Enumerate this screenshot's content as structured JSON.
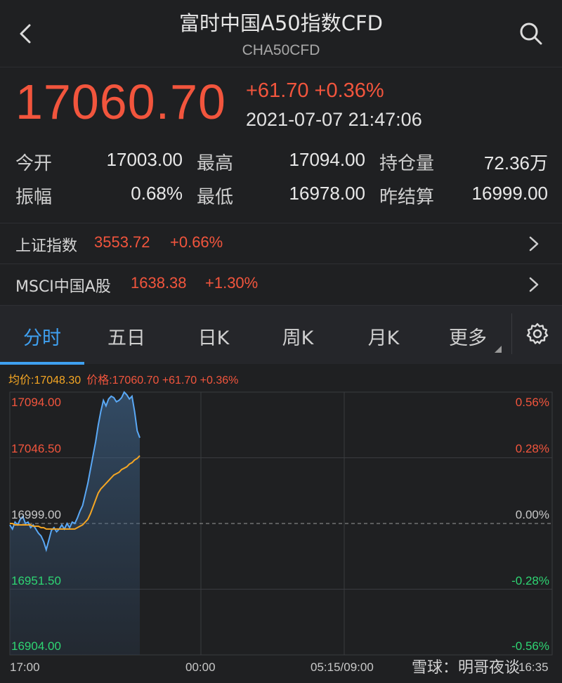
{
  "header": {
    "title": "富时中国A50指数CFD",
    "subtitle": "CHA50CFD",
    "back_icon": "chevron-left-icon",
    "search_icon": "search-icon"
  },
  "quote": {
    "price": "17060.70",
    "change": "+61.70",
    "change_pct": "+0.36%",
    "datetime": "2021-07-07 21:47:06",
    "up_color": "#f2553d"
  },
  "stats": [
    [
      {
        "label": "今开",
        "value": "17003.00"
      },
      {
        "label": "最高",
        "value": "17094.00"
      },
      {
        "label": "持仓量",
        "value": "72.36万"
      }
    ],
    [
      {
        "label": "振幅",
        "value": "0.68%"
      },
      {
        "label": "最低",
        "value": "16978.00"
      },
      {
        "label": "昨结算",
        "value": "16999.00"
      }
    ]
  ],
  "indices": [
    {
      "name": "上证指数",
      "value": "3553.72",
      "change": "+0.66%"
    },
    {
      "name": "MSCI中国A股",
      "value": "1638.38",
      "change": "+1.30%"
    }
  ],
  "tabs": [
    "分时",
    "五日",
    "日K",
    "周K",
    "月K",
    "更多"
  ],
  "active_tab": "分时",
  "legend": {
    "avg": "均价:17048.30",
    "price": "价格:17060.70 +61.70 +0.36%"
  },
  "chart_data": {
    "type": "line",
    "ylim": [
      16904.0,
      17094.0
    ],
    "y_ticks_left": [
      "17094.00",
      "17046.50",
      "16999.00",
      "16951.50",
      "16904.00"
    ],
    "y_ticks_right": [
      "0.56%",
      "0.28%",
      "0.00%",
      "-0.28%",
      "-0.56%"
    ],
    "x_ticks": [
      "17:00",
      "00:00",
      "05:15/09:00",
      "16:35"
    ],
    "baseline": 16999.0,
    "series": [
      {
        "name": "价格",
        "color": "#5aa8f5",
        "values": [
          16998,
          16995,
          17000,
          16998,
          17002,
          17004,
          16999,
          17000,
          16996,
          16998,
          16995,
          16992,
          16990,
          16986,
          16980,
          16987,
          16994,
          16996,
          16993,
          16995,
          16998,
          16995,
          16999,
          16996,
          17000,
          16999,
          17003,
          17008,
          17012,
          17020,
          17028,
          17038,
          17048,
          17058,
          17070,
          17080,
          17088,
          17084,
          17089,
          17091,
          17090,
          17087,
          17088,
          17090,
          17094,
          17092,
          17089,
          17091,
          17080,
          17066,
          17061
        ]
      },
      {
        "name": "均价",
        "color": "#f5a623",
        "values": [
          16999,
          16999,
          16998,
          16998,
          16998,
          16998,
          16998,
          16998,
          16998,
          16997,
          16997,
          16997,
          16996,
          16996,
          16995,
          16995,
          16995,
          16995,
          16995,
          16995,
          16995,
          16995,
          16995,
          16995,
          16995,
          16995,
          16996,
          16997,
          16998,
          17000,
          17002,
          17006,
          17011,
          17016,
          17021,
          17024,
          17026,
          17028,
          17030,
          17032,
          17034,
          17035,
          17036,
          17038,
          17039,
          17040,
          17042,
          17043,
          17045,
          17046,
          17048
        ]
      }
    ]
  },
  "watermark": "雪球：明哥夜谈",
  "settings_icon": "gear-icon"
}
